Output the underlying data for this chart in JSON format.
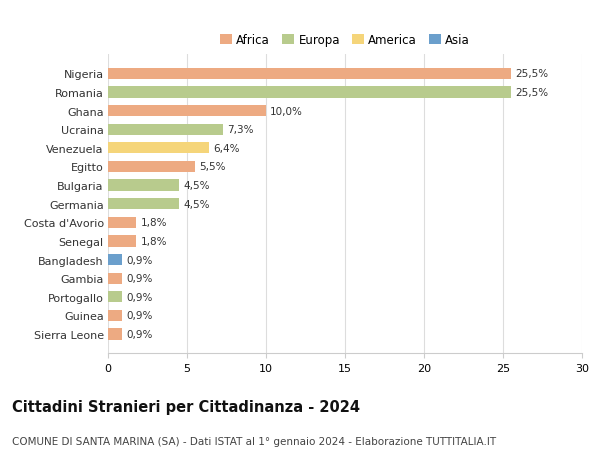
{
  "countries": [
    "Nigeria",
    "Romania",
    "Ghana",
    "Ucraina",
    "Venezuela",
    "Egitto",
    "Bulgaria",
    "Germania",
    "Costa d'Avorio",
    "Senegal",
    "Bangladesh",
    "Gambia",
    "Portogallo",
    "Guinea",
    "Sierra Leone"
  ],
  "values": [
    25.5,
    25.5,
    10.0,
    7.3,
    6.4,
    5.5,
    4.5,
    4.5,
    1.8,
    1.8,
    0.9,
    0.9,
    0.9,
    0.9,
    0.9
  ],
  "labels": [
    "25,5%",
    "25,5%",
    "10,0%",
    "7,3%",
    "6,4%",
    "5,5%",
    "4,5%",
    "4,5%",
    "1,8%",
    "1,8%",
    "0,9%",
    "0,9%",
    "0,9%",
    "0,9%",
    "0,9%"
  ],
  "continents": [
    "Africa",
    "Europa",
    "Africa",
    "Europa",
    "America",
    "Africa",
    "Europa",
    "Europa",
    "Africa",
    "Africa",
    "Asia",
    "Africa",
    "Europa",
    "Africa",
    "Africa"
  ],
  "colors": {
    "Africa": "#EDAA82",
    "Europa": "#B8CB8D",
    "America": "#F5D57A",
    "Asia": "#6B9FCC"
  },
  "title": "Cittadini Stranieri per Cittadinanza - 2024",
  "subtitle": "COMUNE DI SANTA MARINA (SA) - Dati ISTAT al 1° gennaio 2024 - Elaborazione TUTTITALIA.IT",
  "xlim": [
    0,
    30
  ],
  "xticks": [
    0,
    5,
    10,
    15,
    20,
    25,
    30
  ],
  "background_color": "#ffffff",
  "grid_color": "#dddddd",
  "bar_height": 0.6,
  "title_fontsize": 10.5,
  "subtitle_fontsize": 7.5,
  "label_fontsize": 7.5,
  "tick_fontsize": 8,
  "legend_fontsize": 8.5,
  "legend_entries": [
    "Africa",
    "Europa",
    "America",
    "Asia"
  ]
}
